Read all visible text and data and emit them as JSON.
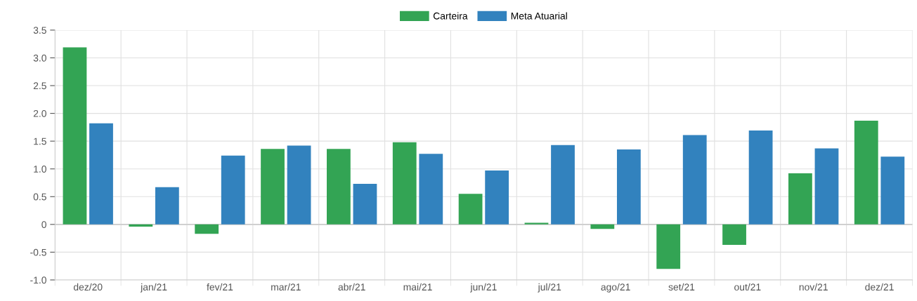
{
  "chart_data": {
    "type": "bar",
    "categories": [
      "dez/20",
      "jan/21",
      "fev/21",
      "mar/21",
      "abr/21",
      "mai/21",
      "jun/21",
      "jul/21",
      "ago/21",
      "set/21",
      "out/21",
      "nov/21",
      "dez/21"
    ],
    "series": [
      {
        "name": "Carteira",
        "color": "#33a454",
        "values": [
          3.19,
          -0.04,
          -0.17,
          1.36,
          1.36,
          1.48,
          0.55,
          0.03,
          -0.08,
          -0.8,
          -0.37,
          0.92,
          1.87
        ]
      },
      {
        "name": "Meta Atuarial",
        "color": "#3282be",
        "values": [
          1.82,
          0.67,
          1.24,
          1.42,
          0.73,
          1.27,
          0.97,
          1.43,
          1.35,
          1.61,
          1.69,
          1.37,
          1.22
        ]
      }
    ],
    "ylim": [
      -1.0,
      3.5
    ],
    "yticks": [
      {
        "value": -1.0,
        "label": "-1.0"
      },
      {
        "value": -0.5,
        "label": "-0.5"
      },
      0,
      0.5,
      {
        "value": 1,
        "label": "1.0"
      },
      1.5,
      {
        "value": 2,
        "label": "2.0"
      },
      2.5,
      {
        "value": 3,
        "label": "3.0"
      },
      3.5
    ],
    "grid": true,
    "legend": "top"
  }
}
